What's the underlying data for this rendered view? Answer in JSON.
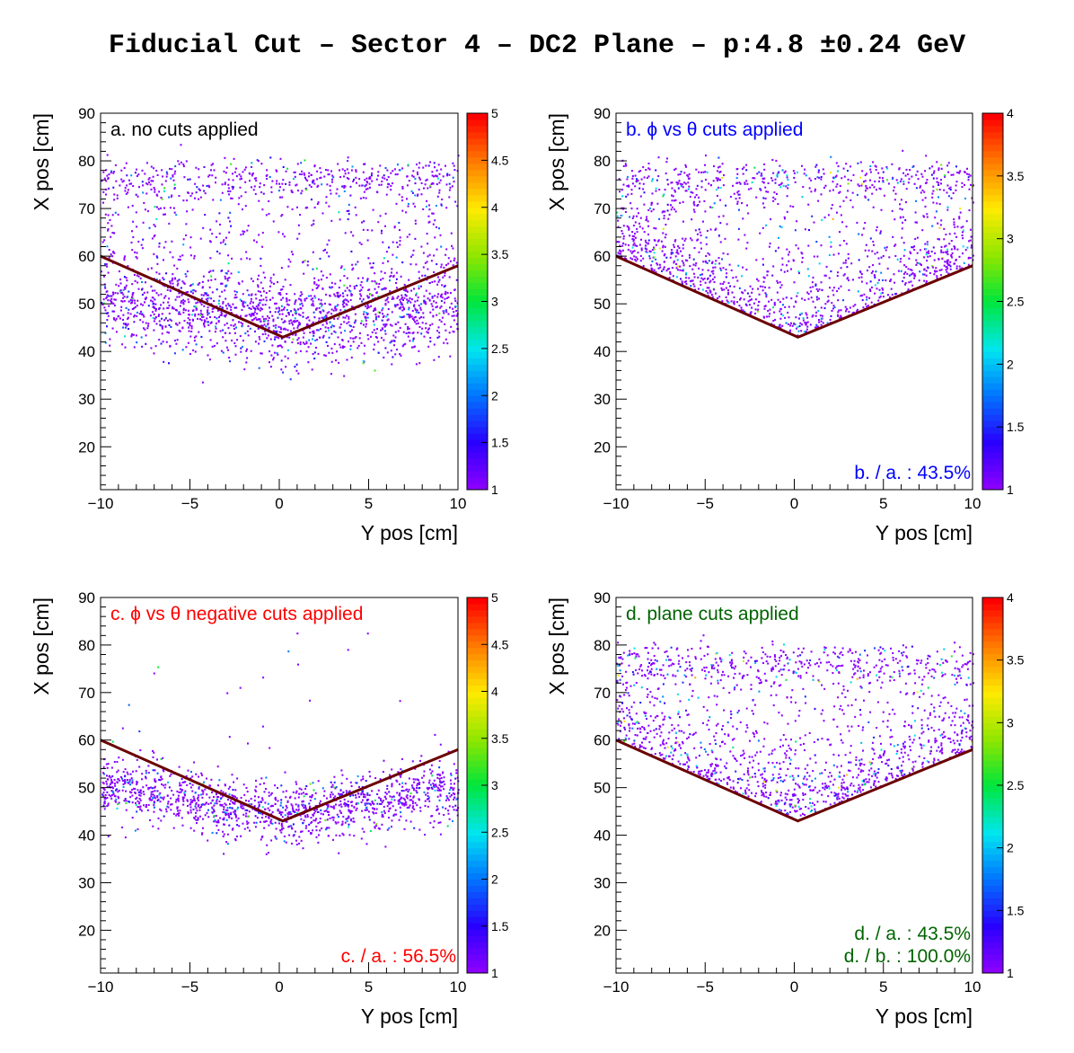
{
  "figure_title": "Fiducial Cut – Sector 4 – DC2 Plane –  p:4.8 ±0.24 GeV",
  "chart_data": [
    {
      "type": "heatmap",
      "panel_label": "a. no cuts applied",
      "label_color": "#000000",
      "ratio_labels": [],
      "xlabel": "Y pos [cm]",
      "ylabel": "X pos [cm]",
      "xlim": [
        -10,
        10
      ],
      "ylim": [
        11,
        90
      ],
      "xticks": [
        -10,
        -5,
        0,
        5,
        10
      ],
      "xtick_labels": [
        "−10",
        "−5",
        "0",
        "5",
        "10"
      ],
      "yticks": [
        20,
        30,
        40,
        50,
        60,
        70,
        80,
        90
      ],
      "zlim": [
        1,
        5
      ],
      "zticks": [
        1,
        1.5,
        2,
        2.5,
        3,
        3.5,
        4,
        4.5,
        5
      ],
      "cut_line": [
        [
          -10,
          60
        ],
        [
          0.2,
          43
        ],
        [
          10,
          58
        ]
      ],
      "cut_line_color": "#6b0000",
      "density": "full"
    },
    {
      "type": "heatmap",
      "panel_label": "b. ϕ vs θ cuts applied",
      "label_color": "#0000ff",
      "ratio_labels": [
        "b. / a. : 43.5%"
      ],
      "xlabel": "Y pos [cm]",
      "ylabel": "X pos [cm]",
      "xlim": [
        -10,
        10
      ],
      "ylim": [
        11,
        90
      ],
      "xticks": [
        -10,
        -5,
        0,
        5,
        10
      ],
      "xtick_labels": [
        "−10",
        "−5",
        "0",
        "5",
        "10"
      ],
      "yticks": [
        20,
        30,
        40,
        50,
        60,
        70,
        80,
        90
      ],
      "zlim": [
        1,
        4
      ],
      "zticks": [
        1,
        1.5,
        2,
        2.5,
        3,
        3.5,
        4
      ],
      "cut_line": [
        [
          -10,
          60
        ],
        [
          0.2,
          43
        ],
        [
          10,
          58
        ]
      ],
      "cut_line_color": "#6b0000",
      "density": "above"
    },
    {
      "type": "heatmap",
      "panel_label": "c. ϕ vs θ negative cuts applied",
      "label_color": "#ff0000",
      "ratio_labels": [
        "c. / a. : 56.5%"
      ],
      "xlabel": "Y pos [cm]",
      "ylabel": "X pos [cm]",
      "xlim": [
        -10,
        10
      ],
      "ylim": [
        11,
        90
      ],
      "xticks": [
        -10,
        -5,
        0,
        5,
        10
      ],
      "xtick_labels": [
        "−10",
        "−5",
        "0",
        "5",
        "10"
      ],
      "yticks": [
        20,
        30,
        40,
        50,
        60,
        70,
        80,
        90
      ],
      "zlim": [
        1,
        5
      ],
      "zticks": [
        1,
        1.5,
        2,
        2.5,
        3,
        3.5,
        4,
        4.5,
        5
      ],
      "cut_line": [
        [
          -10,
          60
        ],
        [
          0.2,
          43
        ],
        [
          10,
          58
        ]
      ],
      "cut_line_color": "#6b0000",
      "density": "band"
    },
    {
      "type": "heatmap",
      "panel_label": "d. plane cuts applied",
      "label_color": "#006400",
      "ratio_labels": [
        "d. / a. : 43.5%",
        "d. / b. : 100.0%"
      ],
      "xlabel": "Y pos [cm]",
      "ylabel": "X pos [cm]",
      "xlim": [
        -10,
        10
      ],
      "ylim": [
        11,
        90
      ],
      "xticks": [
        -10,
        -5,
        0,
        5,
        10
      ],
      "xtick_labels": [
        "−10",
        "−5",
        "0",
        "5",
        "10"
      ],
      "yticks": [
        20,
        30,
        40,
        50,
        60,
        70,
        80,
        90
      ],
      "zlim": [
        1,
        4
      ],
      "zticks": [
        1,
        1.5,
        2,
        2.5,
        3,
        3.5,
        4
      ],
      "cut_line": [
        [
          -10,
          60
        ],
        [
          0.2,
          43
        ],
        [
          10,
          58
        ]
      ],
      "cut_line_color": "#6b0000",
      "density": "above"
    }
  ]
}
